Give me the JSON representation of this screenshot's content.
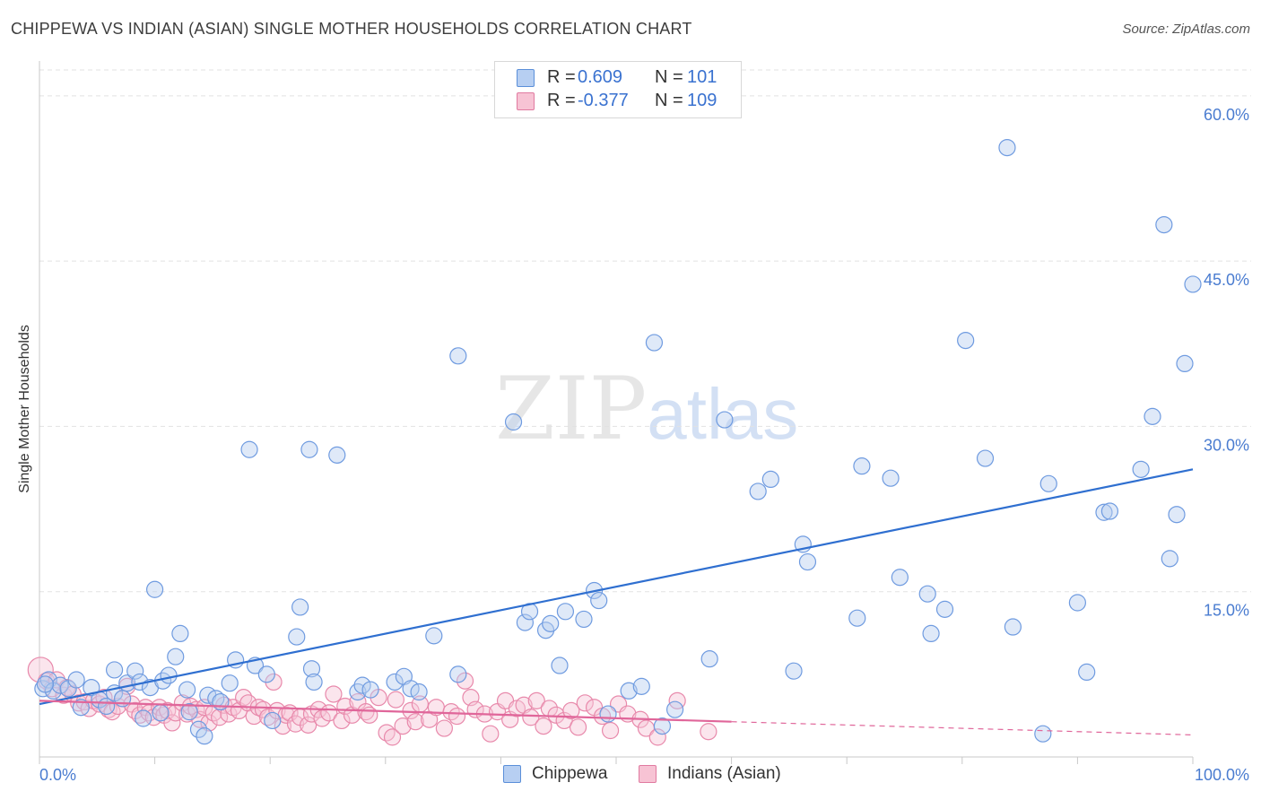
{
  "header": {
    "title": "CHIPPEWA VS INDIAN (ASIAN) SINGLE MOTHER HOUSEHOLDS CORRELATION CHART",
    "source": "Source: ZipAtlas.com"
  },
  "watermark": {
    "zip": "ZIP",
    "atlas": "atlas"
  },
  "stats": [
    {
      "r_label": "R =",
      "r_value": "0.609",
      "n_label": "N =",
      "n_value": "101",
      "color": "#5b8fd9",
      "fill": "#b7cff2"
    },
    {
      "r_label": "R =",
      "r_value": "-0.377",
      "n_label": "N =",
      "n_value": "109",
      "color": "#e07aa0",
      "fill": "#f7c3d4"
    }
  ],
  "legend": {
    "chippewa": "Chippewa",
    "indians": "Indians (Asian)"
  },
  "colors": {
    "chippewa_stroke": "#6f9be0",
    "chippewa_fill": "#b8cff0",
    "chippewa_line": "#2f6fd0",
    "indian_stroke": "#e889ab",
    "indian_fill": "#f6c6d6",
    "indian_line": "#e0669a",
    "grid": "#e2e2e2",
    "tick_text": "#4a7cd0"
  },
  "chart_data": {
    "type": "scatter",
    "title": "CHIPPEWA VS INDIAN (ASIAN) SINGLE MOTHER HOUSEHOLDS CORRELATION CHART",
    "xlabel": "",
    "ylabel": "Single Mother Households",
    "xlim": [
      0,
      100
    ],
    "ylim": [
      0,
      63
    ],
    "x_tick_labels": [
      "0.0%",
      "100.0%"
    ],
    "y_ticks": [
      15,
      30,
      45,
      60
    ],
    "y_tick_labels": [
      "15.0%",
      "30.0%",
      "45.0%",
      "60.0%"
    ],
    "series": [
      {
        "name": "Chippewa",
        "trend": {
          "x": [
            0,
            100
          ],
          "y": [
            4.8,
            26.1
          ]
        },
        "points": [
          [
            0.3,
            6.2
          ],
          [
            0.8,
            7.0
          ],
          [
            1.2,
            6.0
          ],
          [
            1.8,
            6.5
          ],
          [
            2.5,
            6.2
          ],
          [
            3.2,
            7.0
          ],
          [
            3.6,
            4.5
          ],
          [
            4.5,
            6.3
          ],
          [
            5.2,
            5.2
          ],
          [
            5.8,
            4.6
          ],
          [
            6.5,
            5.8
          ],
          [
            6.5,
            7.9
          ],
          [
            7.2,
            5.3
          ],
          [
            7.6,
            6.7
          ],
          [
            8.3,
            7.8
          ],
          [
            8.7,
            6.8
          ],
          [
            9.0,
            3.5
          ],
          [
            9.6,
            6.3
          ],
          [
            10.0,
            15.2
          ],
          [
            10.5,
            4.0
          ],
          [
            10.7,
            6.9
          ],
          [
            11.2,
            7.4
          ],
          [
            11.8,
            9.1
          ],
          [
            12.2,
            11.2
          ],
          [
            12.8,
            6.1
          ],
          [
            13.0,
            4.1
          ],
          [
            13.8,
            2.5
          ],
          [
            14.3,
            1.9
          ],
          [
            14.6,
            5.6
          ],
          [
            15.3,
            5.3
          ],
          [
            15.7,
            5.0
          ],
          [
            16.5,
            6.7
          ],
          [
            17.0,
            8.8
          ],
          [
            18.2,
            27.9
          ],
          [
            18.7,
            8.3
          ],
          [
            19.7,
            7.5
          ],
          [
            20.2,
            3.3
          ],
          [
            22.6,
            13.6
          ],
          [
            22.3,
            10.9
          ],
          [
            23.4,
            27.9
          ],
          [
            23.6,
            8.0
          ],
          [
            23.8,
            6.8
          ],
          [
            25.8,
            27.4
          ],
          [
            27.6,
            5.9
          ],
          [
            28.0,
            6.5
          ],
          [
            28.7,
            6.1
          ],
          [
            30.8,
            6.8
          ],
          [
            31.6,
            7.3
          ],
          [
            32.2,
            6.2
          ],
          [
            32.9,
            5.9
          ],
          [
            34.2,
            11.0
          ],
          [
            36.3,
            7.5
          ],
          [
            36.3,
            36.4
          ],
          [
            41.1,
            30.4
          ],
          [
            42.1,
            12.2
          ],
          [
            42.5,
            13.2
          ],
          [
            43.9,
            11.5
          ],
          [
            44.3,
            12.1
          ],
          [
            45.1,
            8.3
          ],
          [
            45.6,
            13.2
          ],
          [
            47.2,
            12.5
          ],
          [
            48.1,
            15.1
          ],
          [
            48.5,
            14.2
          ],
          [
            49.3,
            3.9
          ],
          [
            51.1,
            6.0
          ],
          [
            52.2,
            6.4
          ],
          [
            53.3,
            37.6
          ],
          [
            54.0,
            2.8
          ],
          [
            55.1,
            4.3
          ],
          [
            58.1,
            8.9
          ],
          [
            59.4,
            30.6
          ],
          [
            62.3,
            24.1
          ],
          [
            63.4,
            25.2
          ],
          [
            65.4,
            7.8
          ],
          [
            66.2,
            19.3
          ],
          [
            66.6,
            17.7
          ],
          [
            70.9,
            12.6
          ],
          [
            71.3,
            26.4
          ],
          [
            73.8,
            25.3
          ],
          [
            74.6,
            16.3
          ],
          [
            77.0,
            14.8
          ],
          [
            77.3,
            11.2
          ],
          [
            78.5,
            13.4
          ],
          [
            80.3,
            37.8
          ],
          [
            82.0,
            27.1
          ],
          [
            83.9,
            55.3
          ],
          [
            84.4,
            11.8
          ],
          [
            87.0,
            2.1
          ],
          [
            87.5,
            24.8
          ],
          [
            90.0,
            14.0
          ],
          [
            90.8,
            7.7
          ],
          [
            92.3,
            22.2
          ],
          [
            92.8,
            22.3
          ],
          [
            95.5,
            26.1
          ],
          [
            96.5,
            30.9
          ],
          [
            97.5,
            48.3
          ],
          [
            98.0,
            18.0
          ],
          [
            98.6,
            22.0
          ],
          [
            99.3,
            35.7
          ],
          [
            100.0,
            42.9
          ],
          [
            0.5,
            6.6
          ]
        ],
        "sizes": [
          1.5
        ]
      },
      {
        "name": "Indians (Asian)",
        "trend": {
          "x": [
            0,
            60
          ],
          "y": [
            5.1,
            3.2
          ]
        },
        "trend_extension": {
          "x": [
            60,
            100
          ],
          "y": [
            3.2,
            2.0
          ]
        },
        "points": [
          [
            0.1,
            7.9
          ],
          [
            0.6,
            6.9
          ],
          [
            1.1,
            6.2
          ],
          [
            1.5,
            7.0
          ],
          [
            2.1,
            5.6
          ],
          [
            2.4,
            6.3
          ],
          [
            2.9,
            5.7
          ],
          [
            3.4,
            4.9
          ],
          [
            3.9,
            5.0
          ],
          [
            4.3,
            4.4
          ],
          [
            4.7,
            5.1
          ],
          [
            5.2,
            4.8
          ],
          [
            5.6,
            5.4
          ],
          [
            6.0,
            4.3
          ],
          [
            6.3,
            4.1
          ],
          [
            6.8,
            4.6
          ],
          [
            7.2,
            5.3
          ],
          [
            7.6,
            6.4
          ],
          [
            8.0,
            4.8
          ],
          [
            8.3,
            4.2
          ],
          [
            8.7,
            3.8
          ],
          [
            9.2,
            4.5
          ],
          [
            9.5,
            4.0
          ],
          [
            9.9,
            3.6
          ],
          [
            10.4,
            4.5
          ],
          [
            10.8,
            3.8
          ],
          [
            11.1,
            4.2
          ],
          [
            11.5,
            3.1
          ],
          [
            11.8,
            4.0
          ],
          [
            12.4,
            4.9
          ],
          [
            12.8,
            3.9
          ],
          [
            13.1,
            4.6
          ],
          [
            13.6,
            4.3
          ],
          [
            13.9,
            3.4
          ],
          [
            14.3,
            4.5
          ],
          [
            14.7,
            3.1
          ],
          [
            15.1,
            4.0
          ],
          [
            15.6,
            3.6
          ],
          [
            16.0,
            4.7
          ],
          [
            16.4,
            3.9
          ],
          [
            16.8,
            4.5
          ],
          [
            17.3,
            4.2
          ],
          [
            17.7,
            5.4
          ],
          [
            18.1,
            4.9
          ],
          [
            18.6,
            3.7
          ],
          [
            19.0,
            4.5
          ],
          [
            19.4,
            4.3
          ],
          [
            19.8,
            3.6
          ],
          [
            20.3,
            6.8
          ],
          [
            20.6,
            4.2
          ],
          [
            21.1,
            2.8
          ],
          [
            21.4,
            3.8
          ],
          [
            21.7,
            4.0
          ],
          [
            22.2,
            3.0
          ],
          [
            22.6,
            3.6
          ],
          [
            23.3,
            2.9
          ],
          [
            23.6,
            3.9
          ],
          [
            24.2,
            4.3
          ],
          [
            24.5,
            3.5
          ],
          [
            25.1,
            4.0
          ],
          [
            25.5,
            5.7
          ],
          [
            26.2,
            3.3
          ],
          [
            26.5,
            4.6
          ],
          [
            27.1,
            3.8
          ],
          [
            27.6,
            5.0
          ],
          [
            28.3,
            4.1
          ],
          [
            28.6,
            3.8
          ],
          [
            29.4,
            5.4
          ],
          [
            30.1,
            2.2
          ],
          [
            30.6,
            1.8
          ],
          [
            30.9,
            5.2
          ],
          [
            31.5,
            2.8
          ],
          [
            32.2,
            4.2
          ],
          [
            32.6,
            3.2
          ],
          [
            33.0,
            4.8
          ],
          [
            33.8,
            3.4
          ],
          [
            34.4,
            4.5
          ],
          [
            35.1,
            2.6
          ],
          [
            35.7,
            4.1
          ],
          [
            36.2,
            3.7
          ],
          [
            36.9,
            6.9
          ],
          [
            37.4,
            5.4
          ],
          [
            37.8,
            4.3
          ],
          [
            38.6,
            3.9
          ],
          [
            39.1,
            2.1
          ],
          [
            39.7,
            4.1
          ],
          [
            40.4,
            5.1
          ],
          [
            40.8,
            3.4
          ],
          [
            41.4,
            4.4
          ],
          [
            42.0,
            4.7
          ],
          [
            42.6,
            3.6
          ],
          [
            43.1,
            5.1
          ],
          [
            43.7,
            2.8
          ],
          [
            44.2,
            4.4
          ],
          [
            44.8,
            3.8
          ],
          [
            45.5,
            3.3
          ],
          [
            46.1,
            4.2
          ],
          [
            46.7,
            2.7
          ],
          [
            47.3,
            4.9
          ],
          [
            48.1,
            4.5
          ],
          [
            48.8,
            3.7
          ],
          [
            49.5,
            2.4
          ],
          [
            50.2,
            4.8
          ],
          [
            51.0,
            3.9
          ],
          [
            52.1,
            3.4
          ],
          [
            52.6,
            2.6
          ],
          [
            53.6,
            1.8
          ],
          [
            55.3,
            5.1
          ],
          [
            58.0,
            2.3
          ]
        ],
        "sizes": [
          1.0
        ]
      }
    ]
  }
}
